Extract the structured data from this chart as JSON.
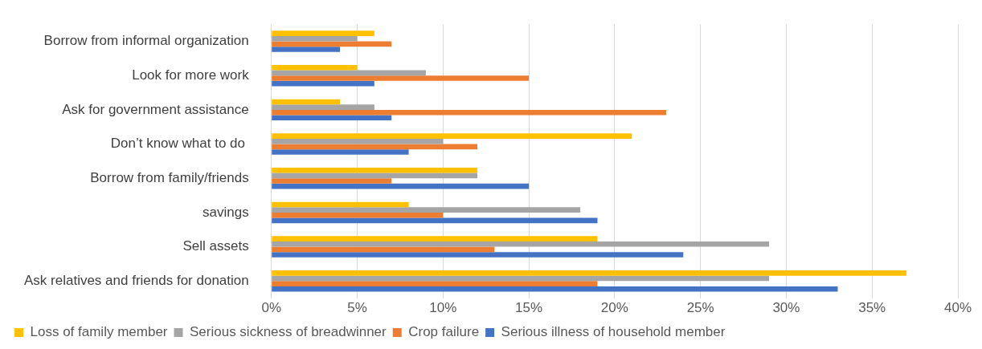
{
  "chart_data": {
    "type": "bar",
    "orientation": "horizontal",
    "categories": [
      "Borrow from informal organization",
      "Look for more work",
      "Ask for government assistance",
      "Don’t know what to do ",
      "Borrow from family/friends",
      "savings",
      "Sell assets",
      "Ask relatives and friends for donation"
    ],
    "series": [
      {
        "name": "Loss of family member",
        "color": "#ffc000",
        "values": [
          6,
          5,
          4,
          21,
          12,
          8,
          19,
          37
        ]
      },
      {
        "name": "Serious sickness of breadwinner",
        "color": "#a5a5a5",
        "values": [
          5,
          9,
          6,
          10,
          12,
          18,
          29,
          29
        ]
      },
      {
        "name": "Crop failure",
        "color": "#ed7d31",
        "values": [
          7,
          15,
          23,
          12,
          7,
          10,
          13,
          19
        ]
      },
      {
        "name": "Serious illness of household member",
        "color": "#4472c4",
        "values": [
          4,
          6,
          7,
          8,
          15,
          19,
          24,
          33
        ]
      }
    ],
    "xlim": [
      0,
      40
    ],
    "xticks": [
      {
        "value": 0,
        "label": "0%"
      },
      {
        "value": 5,
        "label": "5%"
      },
      {
        "value": 10,
        "label": "10%"
      },
      {
        "value": 15,
        "label": "15%"
      },
      {
        "value": 20,
        "label": "20%"
      },
      {
        "value": 25,
        "label": "25%"
      },
      {
        "value": 30,
        "label": "30%"
      },
      {
        "value": 35,
        "label": "35%"
      },
      {
        "value": 40,
        "label": "40%"
      }
    ],
    "grid": "x",
    "legend": "bottom"
  }
}
